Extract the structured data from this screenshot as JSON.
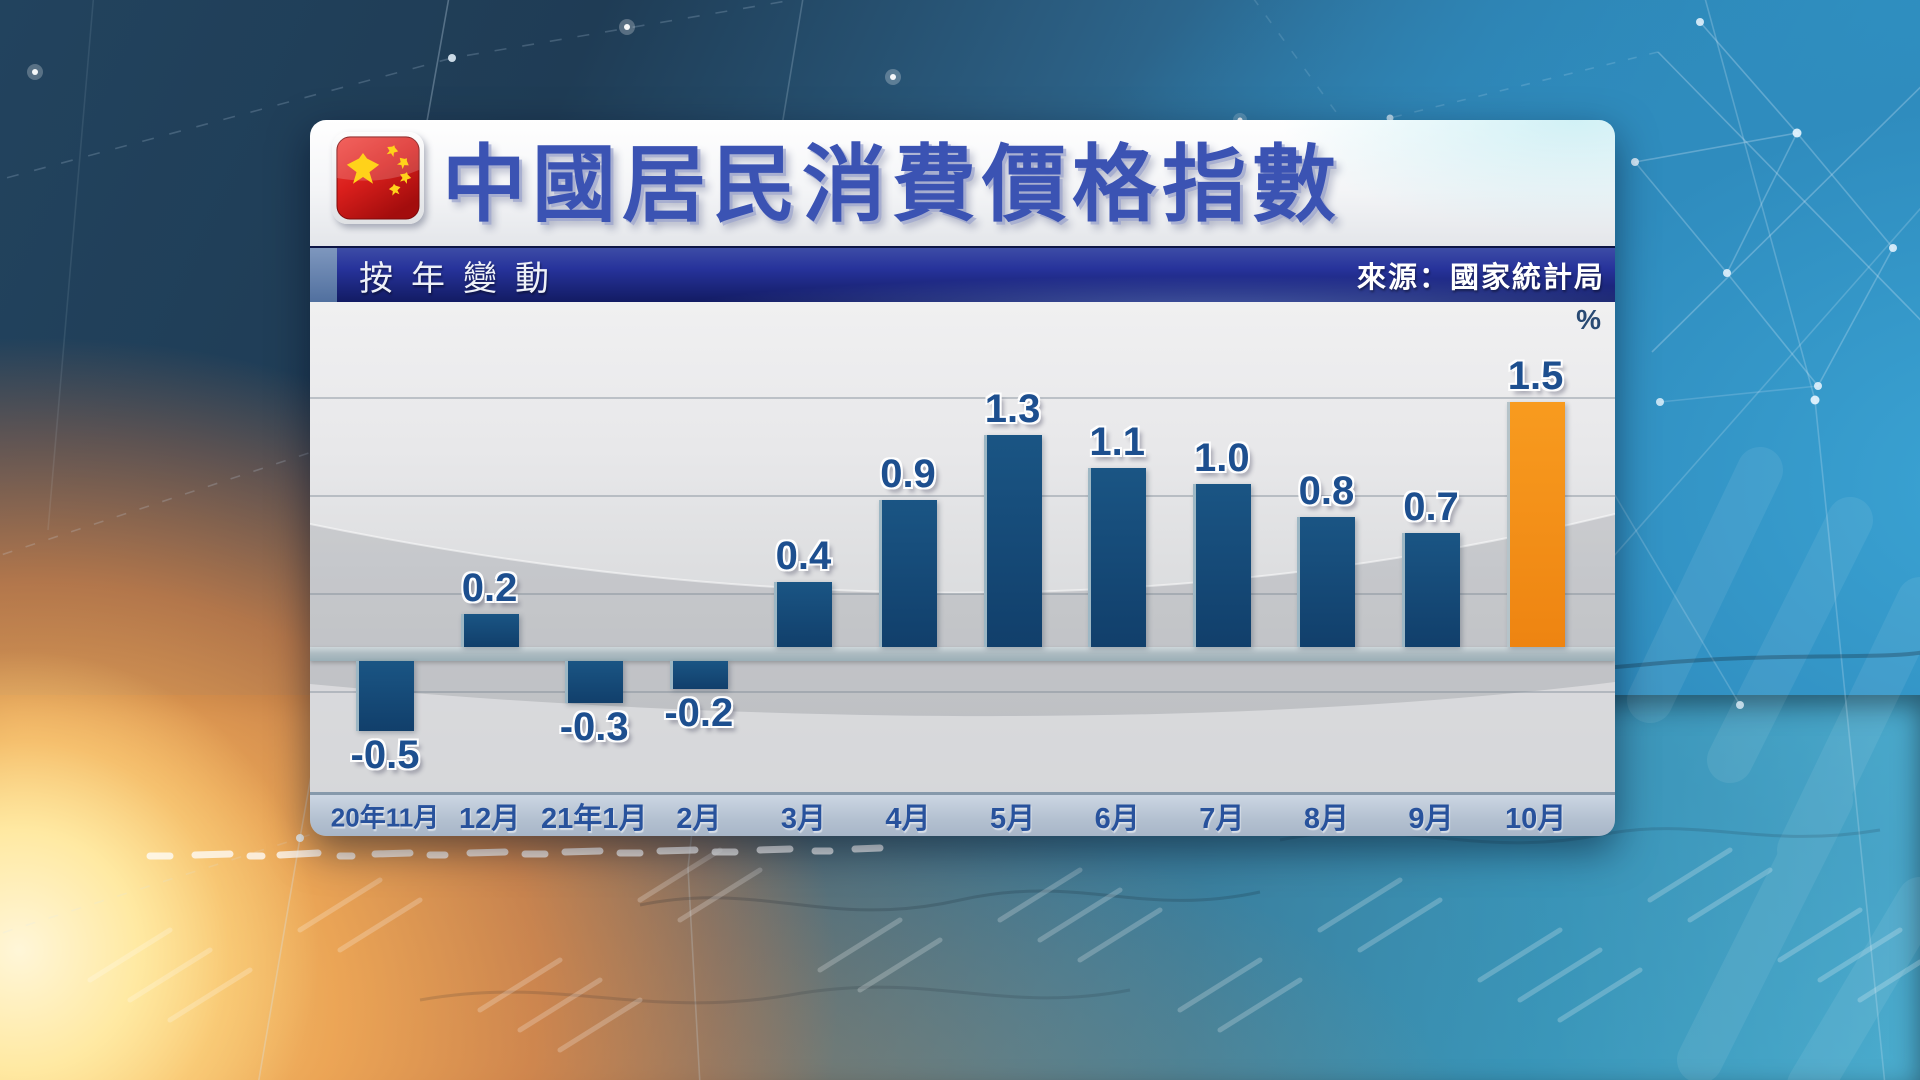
{
  "panel": {
    "flag_icon": "china-flag-icon"
  },
  "chart_data": {
    "type": "bar",
    "title": "中國居民消費價格指數",
    "subtitle": "按年變動",
    "source": "來源：國家統計局",
    "unit": "%",
    "categories": [
      "20年11月",
      "12月",
      "21年1月",
      "2月",
      "3月",
      "4月",
      "5月",
      "6月",
      "7月",
      "8月",
      "9月",
      "10月"
    ],
    "values": [
      -0.5,
      0.2,
      -0.3,
      -0.2,
      0.4,
      0.9,
      1.3,
      1.1,
      1.0,
      0.8,
      0.7,
      1.5
    ],
    "value_labels": [
      "-0.5",
      "0.2",
      "-0.3",
      "-0.2",
      "0.4",
      "0.9",
      "1.3",
      "1.1",
      "1.0",
      "0.8",
      "0.7",
      "1.5"
    ],
    "highlight_index": 11,
    "bar_color": "#1a5584",
    "bar_color_dark": "#113f6b",
    "highlight_color": "#f89b1f",
    "highlight_color_dark": "#ee8411",
    "label_color": "#1d4f8f",
    "ylim": [
      -0.75,
      1.75
    ],
    "gridlines": true,
    "legend": "none",
    "zero_line": true
  }
}
